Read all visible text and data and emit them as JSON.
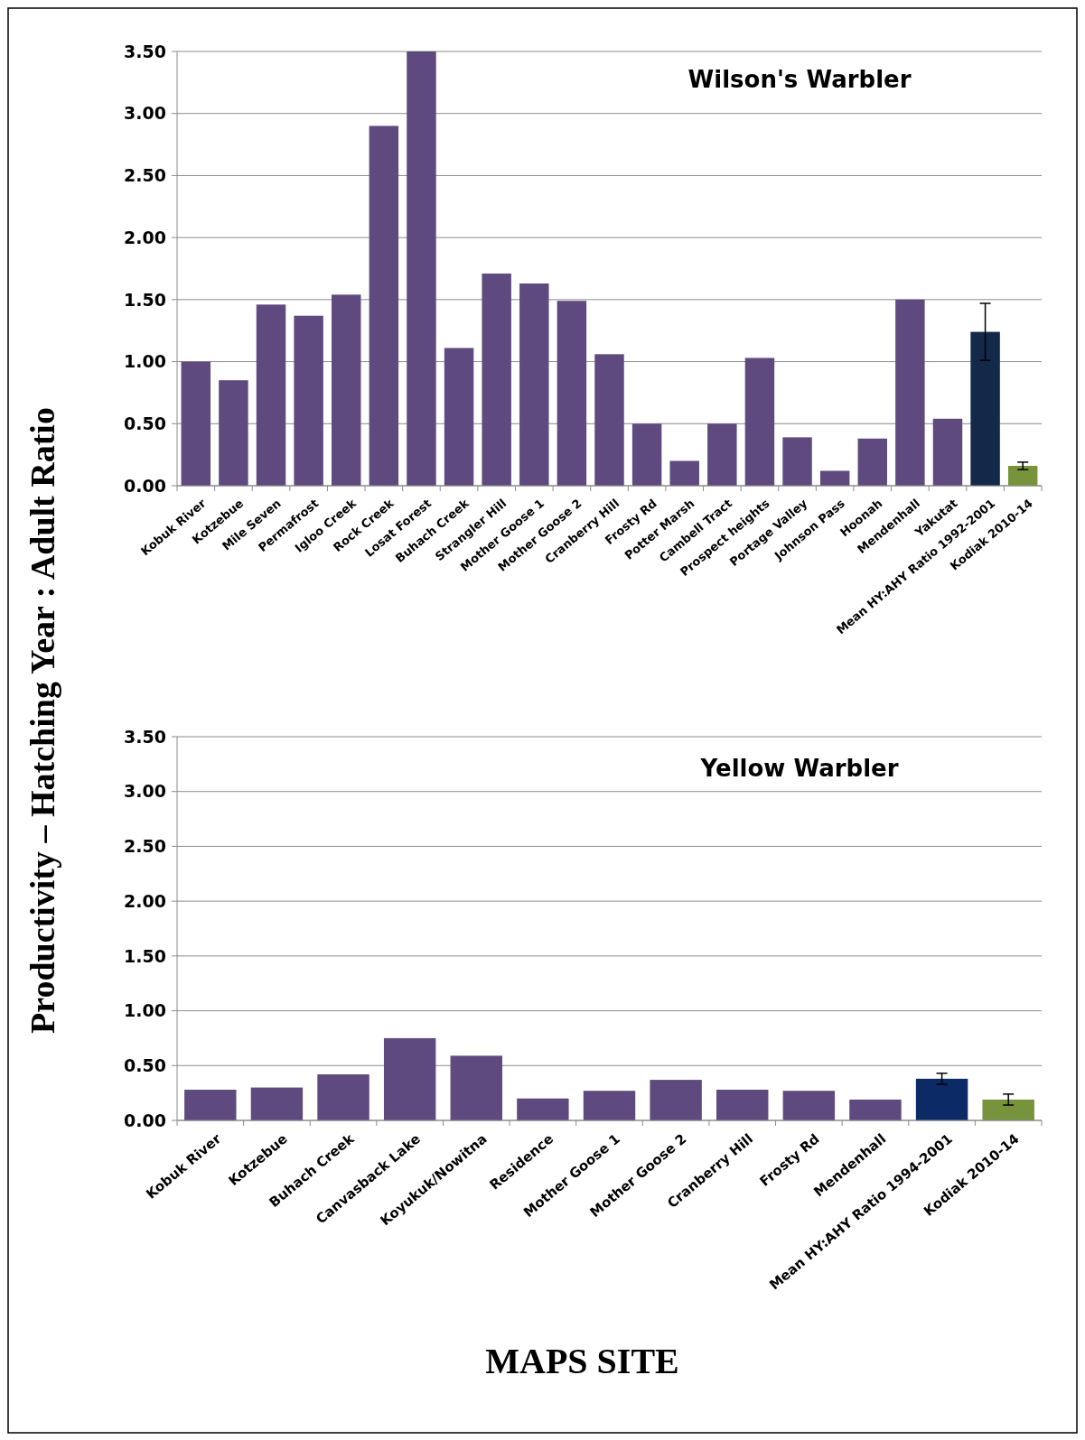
{
  "chart_data": [
    {
      "type": "bar",
      "title": "Wilson's Warbler",
      "ylabel": "Productivity – Hatching Year : Adult Ratio",
      "categories": [
        "Kobuk River",
        "Kotzebue",
        "Mile Seven",
        "Permafrost",
        "Igloo Creek",
        "Rock Creek",
        "Losat Forest",
        "Buhach Creek",
        "Strangler Hill",
        "Mother Goose 1",
        "Mother Goose 2",
        "Cranberry Hill",
        "Frosty Rd",
        "Potter Marsh",
        "Cambell Tract",
        "Prospect heights",
        "Portage Valley",
        "Johnson Pass",
        "Hoonah",
        "Mendenhall",
        "Yakutat",
        "Mean HY:AHY Ratio 1992-2001",
        "Kodiak 2010-14"
      ],
      "values": [
        1.0,
        0.85,
        1.46,
        1.37,
        1.54,
        2.9,
        3.5,
        1.11,
        1.71,
        1.63,
        1.49,
        1.06,
        0.5,
        0.2,
        0.5,
        1.03,
        0.39,
        0.12,
        0.38,
        1.5,
        0.54,
        1.24,
        0.16
      ],
      "colors": [
        "#5f4a7f",
        "#5f4a7f",
        "#5f4a7f",
        "#5f4a7f",
        "#5f4a7f",
        "#5f4a7f",
        "#5f4a7f",
        "#5f4a7f",
        "#5f4a7f",
        "#5f4a7f",
        "#5f4a7f",
        "#5f4a7f",
        "#5f4a7f",
        "#5f4a7f",
        "#5f4a7f",
        "#5f4a7f",
        "#5f4a7f",
        "#5f4a7f",
        "#5f4a7f",
        "#5f4a7f",
        "#5f4a7f",
        "#14284a",
        "#77933c"
      ],
      "errors": [
        null,
        null,
        null,
        null,
        null,
        null,
        null,
        null,
        null,
        null,
        null,
        null,
        null,
        null,
        null,
        null,
        null,
        null,
        null,
        null,
        null,
        0.23,
        0.03
      ],
      "ylim": [
        0,
        3.5
      ],
      "yticks": [
        {
          "value": 0,
          "label": "0.00"
        },
        {
          "value": 0.5,
          "label": "0.50"
        },
        {
          "value": 1,
          "label": "1.00"
        },
        {
          "value": 1.5,
          "label": "1.50"
        },
        {
          "value": 2,
          "label": "2.00"
        },
        {
          "value": 2.5,
          "label": "2.50"
        },
        {
          "value": 3,
          "label": "3.00"
        },
        {
          "value": 3.5,
          "label": "3.50"
        }
      ],
      "grid": "y"
    },
    {
      "type": "bar",
      "title": "Yellow Warbler",
      "xlabel": "MAPS SITE",
      "categories": [
        "Kobuk River",
        "Kotzebue",
        "Buhach Creek",
        "Canvasback Lake",
        "Koyukuk/Nowitna",
        "Residence",
        "Mother Goose 1",
        "Mother Goose 2",
        "Cranberry Hill",
        "Frosty Rd",
        "Mendenhall",
        "Mean HY:AHY Ratio 1994-2001",
        "Kodiak 2010-14"
      ],
      "values": [
        0.28,
        0.3,
        0.42,
        0.75,
        0.59,
        0.2,
        0.27,
        0.37,
        0.28,
        0.27,
        0.19,
        0.38,
        0.19
      ],
      "colors": [
        "#5f4a7f",
        "#5f4a7f",
        "#5f4a7f",
        "#5f4a7f",
        "#5f4a7f",
        "#5f4a7f",
        "#5f4a7f",
        "#5f4a7f",
        "#5f4a7f",
        "#5f4a7f",
        "#5f4a7f",
        "#0c2a66",
        "#77933c"
      ],
      "errors": [
        null,
        null,
        null,
        null,
        null,
        null,
        null,
        null,
        null,
        null,
        null,
        0.05,
        0.05
      ],
      "ylim": [
        0,
        3.5
      ],
      "yticks": [
        {
          "value": 0,
          "label": "0.00"
        },
        {
          "value": 0.5,
          "label": "0.50"
        },
        {
          "value": 1,
          "label": "1.00"
        },
        {
          "value": 1.5,
          "label": "1.50"
        },
        {
          "value": 2,
          "label": "2.00"
        },
        {
          "value": 2.5,
          "label": "2.50"
        },
        {
          "value": 3,
          "label": "3.00"
        },
        {
          "value": 3.5,
          "label": "3.50"
        }
      ],
      "grid": "y"
    }
  ]
}
